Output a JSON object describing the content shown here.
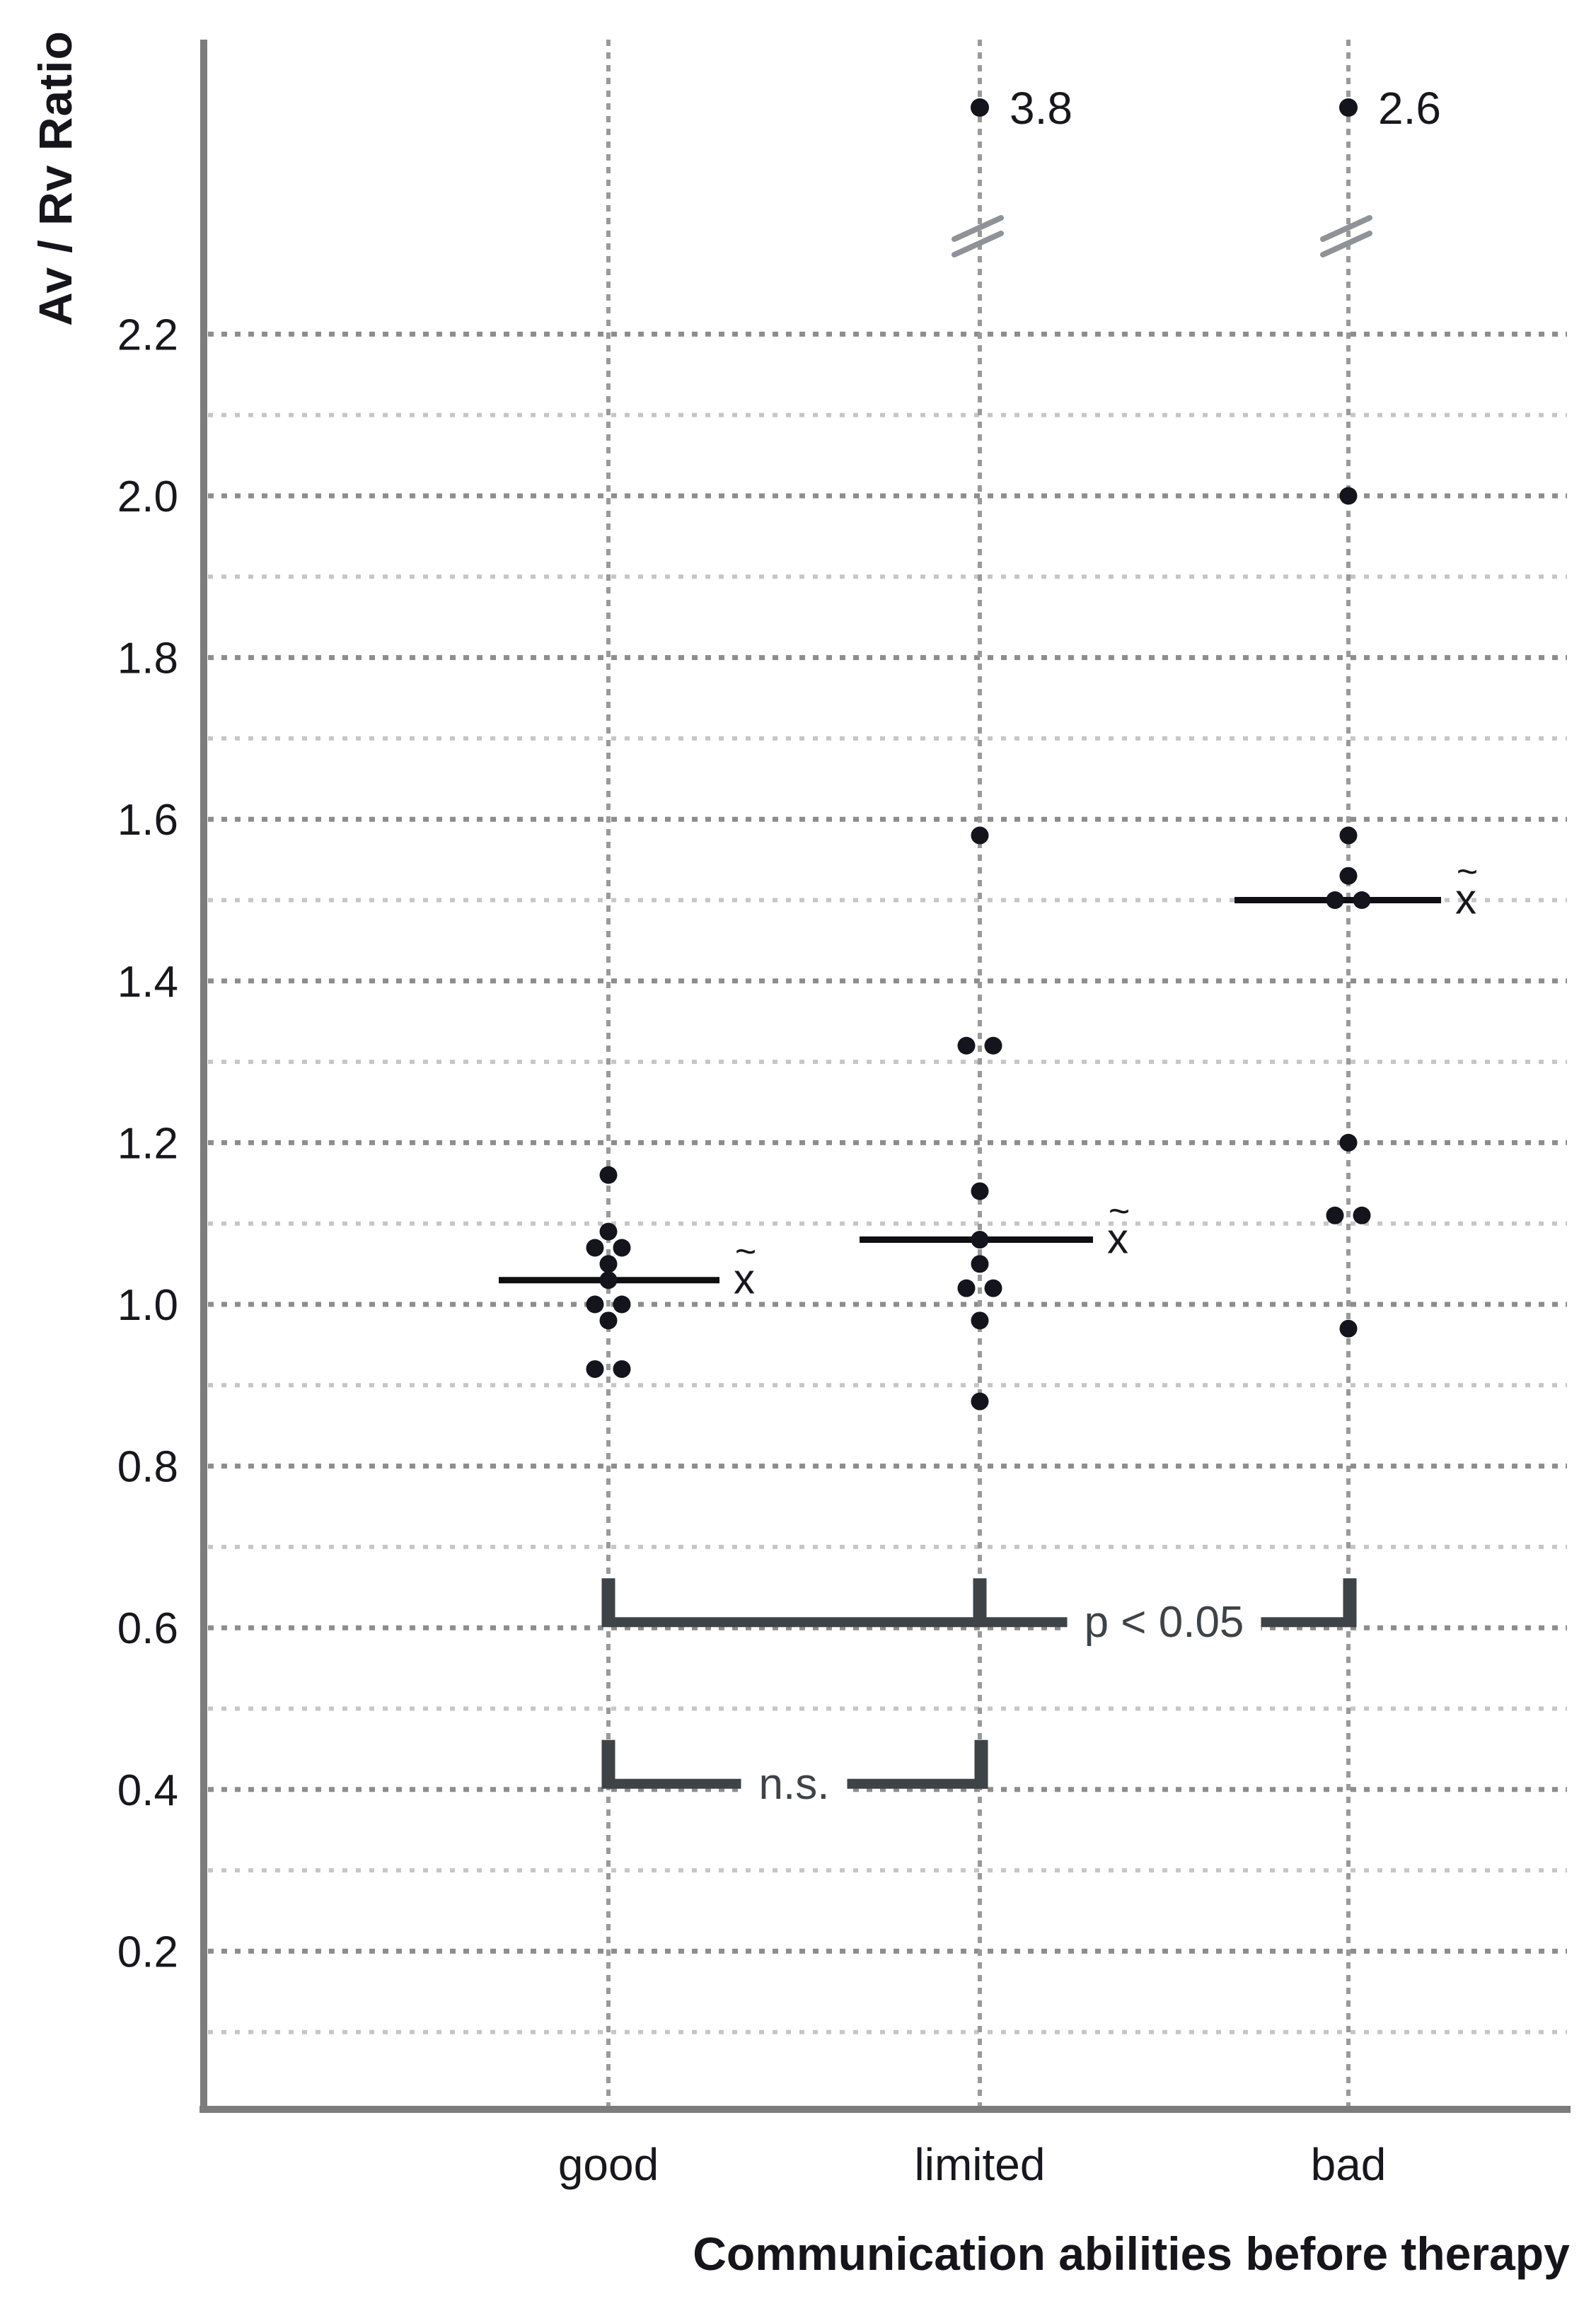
{
  "chart_data": {
    "type": "scatter",
    "variant": "univariate-dot-plot-with-medians",
    "title": "",
    "ylabel": "Av / Rv Ratio",
    "xlabel": "Communication abilities before therapy",
    "categories": [
      "good",
      "limited",
      "bad"
    ],
    "y_axis": {
      "ticks": [
        {
          "value": 2.2,
          "label": "2.2"
        },
        {
          "value": 2.0,
          "label": "2.0"
        },
        {
          "value": 1.8,
          "label": "1.8"
        },
        {
          "value": 1.6,
          "label": "1.6"
        },
        {
          "value": 1.4,
          "label": "1.4"
        },
        {
          "value": 1.2,
          "label": "1.2"
        },
        {
          "value": 1.0,
          "label": "1.0"
        },
        {
          "value": 0.8,
          "label": "0.8"
        },
        {
          "value": 0.6,
          "label": "0.6"
        },
        {
          "value": 0.4,
          "label": "0.4"
        },
        {
          "value": 0.2,
          "label": "0.2"
        }
      ],
      "gridline_step": 0.1,
      "shown_range": [
        0,
        2.3
      ],
      "axis_break_above": 2.3,
      "grid": true
    },
    "median_symbol": "x̃",
    "groups": [
      {
        "category": "good",
        "values": [
          1.16,
          1.09,
          1.07,
          1.07,
          1.05,
          1.03,
          1.0,
          1.0,
          0.98,
          0.92,
          0.92
        ],
        "median": 1.03,
        "outlier": null
      },
      {
        "category": "limited",
        "values": [
          1.58,
          1.32,
          1.32,
          1.14,
          1.08,
          1.05,
          1.02,
          1.02,
          0.98,
          0.88
        ],
        "median": 1.08,
        "outlier": {
          "value": 3.8,
          "label": "3.8"
        }
      },
      {
        "category": "bad",
        "values": [
          2.0,
          1.58,
          1.53,
          1.5,
          1.5,
          1.2,
          1.11,
          1.11,
          0.97
        ],
        "median": 1.5,
        "outlier": {
          "value": 2.6,
          "label": "2.6"
        }
      }
    ],
    "significance": [
      {
        "from": "good",
        "to": "bad",
        "label": "p < 0.05",
        "at_value": 0.6,
        "ticks_at": [
          "good",
          "limited",
          "bad"
        ]
      },
      {
        "from": "good",
        "to": "limited",
        "label": "n.s.",
        "at_value": 0.4,
        "ticks_at": [
          "good",
          "limited"
        ]
      }
    ],
    "legend": null,
    "colors": {
      "dot": "#14141d",
      "median_line": "#0e0e13",
      "grid_major": "#8d8d8d",
      "grid_minor": "#c6c6c6",
      "column_guide": "#9a9a9a",
      "axis": "#7c7c7c",
      "bracket": "#3e4348",
      "axis_break": "#8f9398",
      "text": "#17171d",
      "background": "#ffffff"
    }
  }
}
